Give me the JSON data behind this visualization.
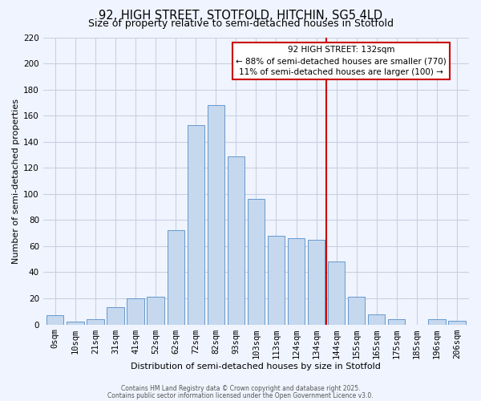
{
  "title": "92, HIGH STREET, STOTFOLD, HITCHIN, SG5 4LD",
  "subtitle": "Size of property relative to semi-detached houses in Stotfold",
  "xlabel": "Distribution of semi-detached houses by size in Stotfold",
  "ylabel": "Number of semi-detached properties",
  "bar_labels": [
    "0sqm",
    "10sqm",
    "21sqm",
    "31sqm",
    "41sqm",
    "52sqm",
    "62sqm",
    "72sqm",
    "82sqm",
    "93sqm",
    "103sqm",
    "113sqm",
    "124sqm",
    "134sqm",
    "144sqm",
    "155sqm",
    "165sqm",
    "175sqm",
    "185sqm",
    "196sqm",
    "206sqm"
  ],
  "bar_values": [
    7,
    2,
    4,
    13,
    20,
    21,
    72,
    153,
    168,
    129,
    96,
    68,
    66,
    65,
    48,
    21,
    8,
    4,
    0,
    4,
    3
  ],
  "bar_color": "#c5d8ee",
  "bar_edge_color": "#6699cc",
  "vline_x": 13.5,
  "vline_color": "#cc0000",
  "annotation_title": "92 HIGH STREET: 132sqm",
  "annotation_line1": "← 88% of semi-detached houses are smaller (770)",
  "annotation_line2": "11% of semi-detached houses are larger (100) →",
  "annotation_box_facecolor": "#ffffff",
  "annotation_box_edgecolor": "#cc0000",
  "ylim": [
    0,
    220
  ],
  "yticks": [
    0,
    20,
    40,
    60,
    80,
    100,
    120,
    140,
    160,
    180,
    200,
    220
  ],
  "footer1": "Contains HM Land Registry data © Crown copyright and database right 2025.",
  "footer2": "Contains public sector information licensed under the Open Government Licence v3.0.",
  "bg_color": "#f0f4ff",
  "grid_color": "#c8d0e0",
  "title_fontsize": 10.5,
  "subtitle_fontsize": 9,
  "axis_fontsize": 8,
  "tick_fontsize": 7.5
}
